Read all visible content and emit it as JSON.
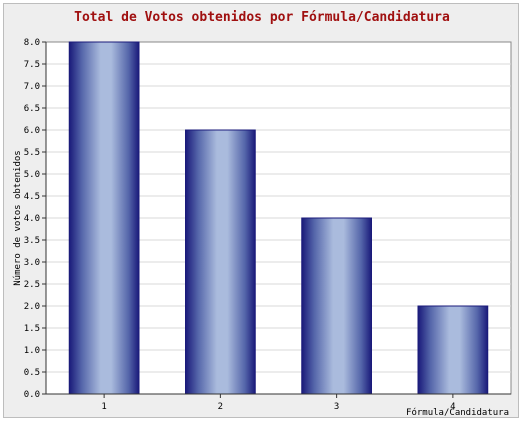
{
  "chart_data": {
    "type": "bar",
    "title": "Total de Votos obtenidos por Fórmula/Candidatura",
    "xlabel": "Fórmula/Candidatura",
    "ylabel": "Número de votos obtenidos",
    "categories": [
      "1",
      "2",
      "3",
      "4"
    ],
    "values": [
      8,
      6,
      4,
      2
    ],
    "ylim": [
      0,
      8
    ],
    "ytick_step": 0.5,
    "ytick_labels": [
      "0.0",
      "0.5",
      "1.0",
      "1.5",
      "2.0",
      "2.5",
      "3.0",
      "3.5",
      "4.0",
      "4.5",
      "5.0",
      "5.5",
      "6.0",
      "6.5",
      "7.0",
      "7.5",
      "8.0"
    ],
    "grid": true,
    "colors": {
      "bar_edge": "#1a1a7a",
      "bar_center": "#aabbdd",
      "title": "#a01010",
      "grid": "#d8d8d8",
      "plot_background": "#ffffff",
      "frame_background": "#eeeeee"
    }
  }
}
